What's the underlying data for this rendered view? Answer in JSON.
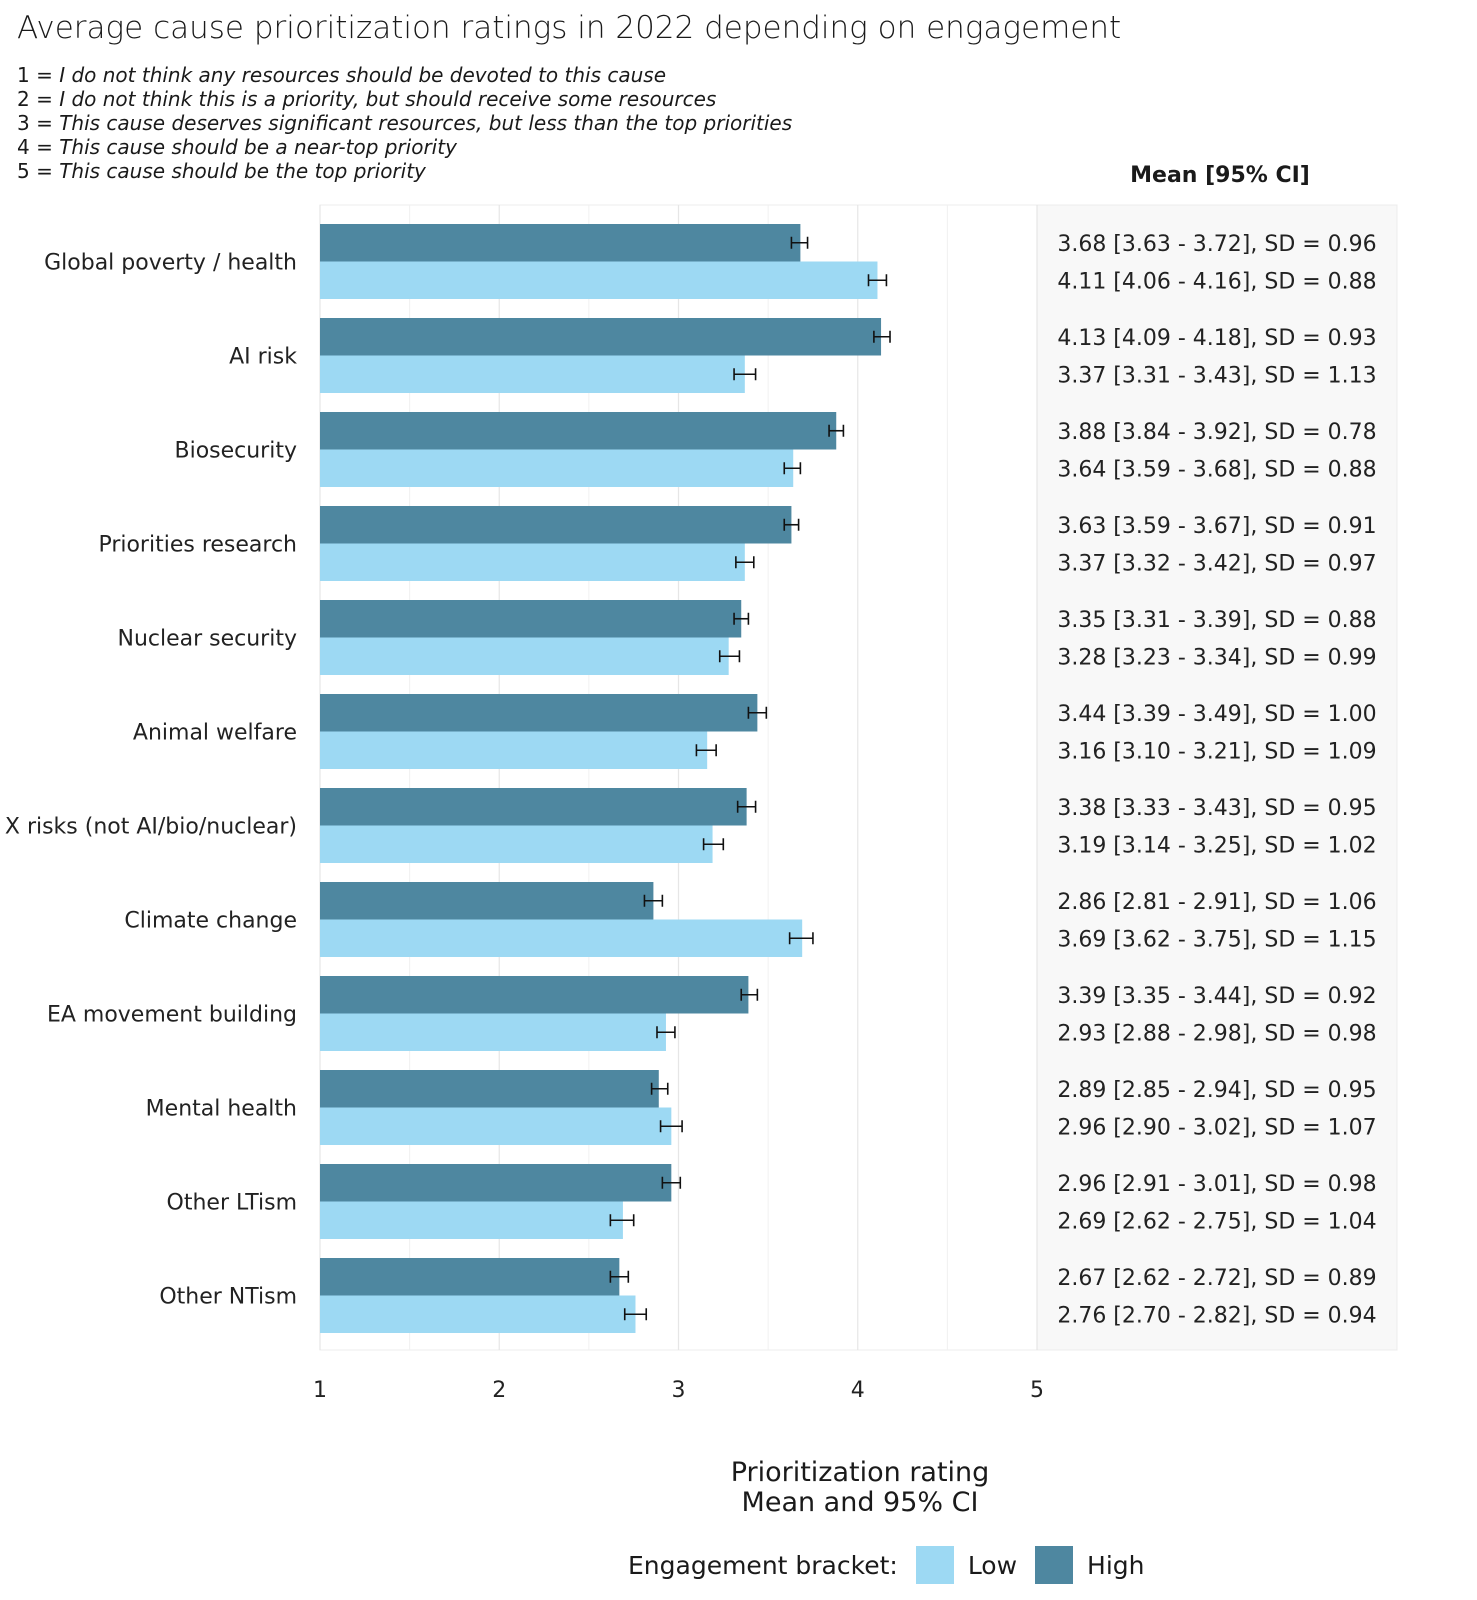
{
  "title": "Average cause prioritization ratings in 2022 depending on engagement",
  "scale_notes": [
    {
      "num": "1 = ",
      "text": "I do not think any resources should be devoted to this cause"
    },
    {
      "num": "2 = ",
      "text": "I do not think this is a priority, but should receive some resources"
    },
    {
      "num": "3 = ",
      "text": "This cause deserves significant resources, but less than the top priorities"
    },
    {
      "num": "4 = ",
      "text": "This cause should be a near-top priority"
    },
    {
      "num": "5 = ",
      "text": "This cause should be the top priority"
    }
  ],
  "ci_header": "Mean [95% CI]",
  "x_title_line1": "Prioritization rating",
  "x_title_line2": "Mean and 95% CI",
  "legend": {
    "title": "Engagement bracket:",
    "low_label": "Low",
    "high_label": "High",
    "low_color": "#9dd9f3",
    "high_color": "#4e87a0"
  },
  "chart_data": {
    "type": "bar",
    "orientation": "horizontal",
    "xlim": [
      1,
      5
    ],
    "x_ticks": [
      "1",
      "2",
      "3",
      "4",
      "5"
    ],
    "xlabel": "Prioritization rating / Mean and 95% CI",
    "categories": [
      "Global poverty / health",
      "AI risk",
      "Biosecurity",
      "Priorities research",
      "Nuclear security",
      "Animal welfare",
      "X risks (not AI/bio/nuclear)",
      "Climate change",
      "EA movement building",
      "Mental health",
      "Other LTism",
      "Other NTism"
    ],
    "series": [
      {
        "name": "High",
        "values": [
          3.68,
          4.13,
          3.88,
          3.63,
          3.35,
          3.44,
          3.38,
          2.86,
          3.39,
          2.89,
          2.96,
          2.67
        ],
        "ci_low": [
          3.63,
          4.09,
          3.84,
          3.59,
          3.31,
          3.39,
          3.33,
          2.81,
          3.35,
          2.85,
          2.91,
          2.62
        ],
        "ci_high": [
          3.72,
          4.18,
          3.92,
          3.67,
          3.39,
          3.49,
          3.43,
          2.91,
          3.44,
          2.94,
          3.01,
          2.72
        ],
        "labels": [
          "3.68 [3.63 - 3.72], SD = 0.96",
          "4.13 [4.09 - 4.18], SD = 0.93",
          "3.88 [3.84 - 3.92], SD = 0.78",
          "3.63 [3.59 - 3.67], SD = 0.91",
          "3.35 [3.31 - 3.39], SD = 0.88",
          "3.44 [3.39 - 3.49], SD = 1.00",
          "3.38 [3.33 - 3.43], SD = 0.95",
          "2.86 [2.81 - 2.91], SD = 1.06",
          "3.39 [3.35 - 3.44], SD = 0.92",
          "2.89 [2.85 - 2.94], SD = 0.95",
          "2.96 [2.91 - 3.01], SD = 0.98",
          "2.67 [2.62 - 2.72], SD = 0.89"
        ]
      },
      {
        "name": "Low",
        "values": [
          4.11,
          3.37,
          3.64,
          3.37,
          3.28,
          3.16,
          3.19,
          3.69,
          2.93,
          2.96,
          2.69,
          2.76
        ],
        "ci_low": [
          4.06,
          3.31,
          3.59,
          3.32,
          3.23,
          3.1,
          3.14,
          3.62,
          2.88,
          2.9,
          2.62,
          2.7
        ],
        "ci_high": [
          4.16,
          3.43,
          3.68,
          3.42,
          3.34,
          3.21,
          3.25,
          3.75,
          2.98,
          3.02,
          2.75,
          2.82
        ],
        "labels": [
          "4.11 [4.06 - 4.16], SD = 0.88",
          "3.37 [3.31 - 3.43], SD = 1.13",
          "3.64 [3.59 - 3.68], SD = 0.88",
          "3.37 [3.32 - 3.42], SD = 0.97",
          "3.28 [3.23 - 3.34], SD = 0.99",
          "3.16 [3.10 - 3.21], SD = 1.09",
          "3.19 [3.14 - 3.25], SD = 1.02",
          "3.69 [3.62 - 3.75], SD = 1.15",
          "2.93 [2.88 - 2.98], SD = 0.98",
          "2.96 [2.90 - 3.02], SD = 1.07",
          "2.69 [2.62 - 2.75], SD = 1.04",
          "2.76 [2.70 - 2.82], SD = 0.94"
        ]
      }
    ]
  }
}
